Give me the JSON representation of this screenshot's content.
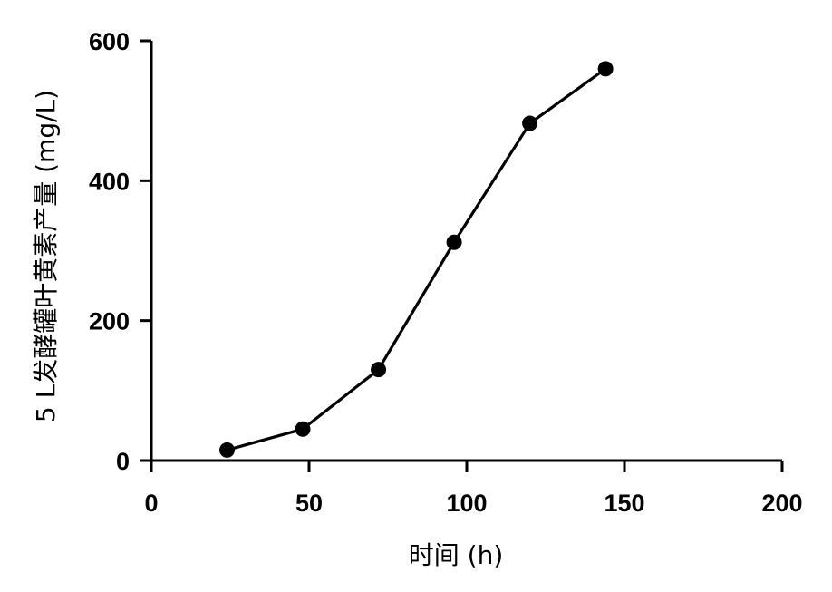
{
  "chart_data": {
    "type": "line",
    "xlabel": "时间 (h)",
    "ylabel": "5 L发酵罐叶黄素产量 (mg/L)",
    "xlim": [
      0,
      200
    ],
    "ylim": [
      0,
      600
    ],
    "x_ticks": [
      0,
      50,
      100,
      150,
      200
    ],
    "y_ticks": [
      0,
      200,
      400,
      600
    ],
    "x_tick_labels": [
      "0",
      "50",
      "100",
      "150",
      "200"
    ],
    "y_tick_labels": [
      "0",
      "200",
      "400",
      "600"
    ],
    "grid": false,
    "series": [
      {
        "x": [
          24,
          48,
          72,
          96,
          120,
          144
        ],
        "y": [
          15,
          45,
          130,
          312,
          482,
          560
        ]
      }
    ],
    "colors": {
      "line": "#000000",
      "marker": "#000000",
      "axis": "#000000"
    }
  }
}
